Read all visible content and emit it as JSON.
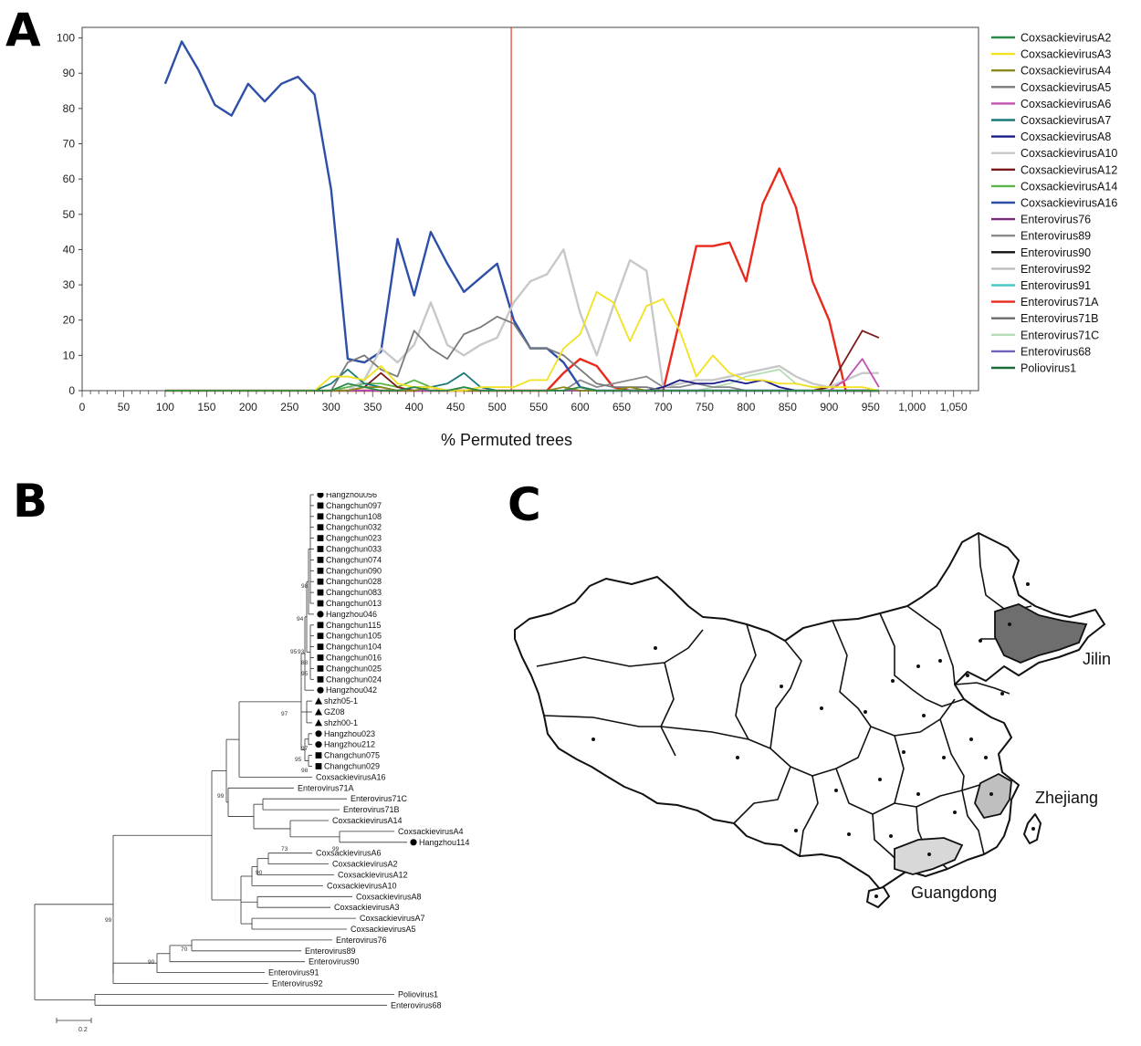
{
  "panels": {
    "a": "A",
    "b": "B",
    "c": "C"
  },
  "chart_data": {
    "type": "line",
    "xlabel": "% Permuted trees",
    "ylabel": "",
    "xlim": [
      0,
      1080
    ],
    "ylim": [
      0,
      103
    ],
    "x_ticks": [
      0,
      50,
      100,
      150,
      200,
      250,
      300,
      350,
      400,
      450,
      500,
      550,
      600,
      650,
      700,
      750,
      800,
      850,
      900,
      950,
      "1,000",
      "1,050"
    ],
    "y_ticks": [
      0,
      10,
      20,
      30,
      40,
      50,
      60,
      70,
      80,
      90,
      100
    ],
    "vertical_marker_x": 517,
    "vertical_marker_color": "#e03c2c",
    "x": [
      100,
      120,
      140,
      160,
      180,
      200,
      220,
      240,
      260,
      280,
      300,
      320,
      340,
      360,
      380,
      400,
      420,
      440,
      460,
      480,
      500,
      520,
      540,
      560,
      580,
      600,
      620,
      640,
      660,
      680,
      700,
      720,
      740,
      760,
      780,
      800,
      820,
      840,
      860,
      880,
      900,
      920,
      940,
      960
    ],
    "legend_position": "right",
    "series": [
      {
        "name": "CoxsackievirusA2",
        "color": "#2a8a4a",
        "values": [
          0,
          0,
          0,
          0,
          0,
          0,
          0,
          0,
          0,
          0,
          0,
          2,
          1,
          0,
          0,
          1,
          0,
          0,
          1,
          0,
          0,
          0,
          0,
          0,
          0,
          1,
          0,
          0,
          0,
          0,
          0,
          0,
          0,
          0,
          0,
          0,
          0,
          0,
          0,
          0,
          0,
          0,
          0,
          0
        ]
      },
      {
        "name": "CoxsackievirusA3",
        "color": "#f2e21e",
        "values": [
          0,
          0,
          0,
          0,
          0,
          0,
          0,
          0,
          0,
          0,
          4,
          4,
          3,
          7,
          2,
          1,
          1,
          0,
          0,
          1,
          1,
          1,
          3,
          3,
          12,
          16,
          28,
          25,
          14,
          24,
          26,
          17,
          4,
          10,
          5,
          3,
          3,
          2,
          2,
          1,
          1,
          1,
          1,
          0
        ]
      },
      {
        "name": "CoxsackievirusA4",
        "color": "#8a8a1a",
        "values": [
          0,
          0,
          0,
          0,
          0,
          0,
          0,
          0,
          0,
          0,
          0,
          0,
          1,
          1,
          0,
          0,
          1,
          0,
          0,
          0,
          0,
          0,
          0,
          0,
          1,
          0,
          0,
          0,
          1,
          0,
          0,
          0,
          0,
          0,
          0,
          0,
          0,
          0,
          0,
          0,
          0,
          0,
          0,
          0
        ]
      },
      {
        "name": "CoxsackievirusA5",
        "color": "#7a7a7a",
        "values": [
          0,
          0,
          0,
          0,
          0,
          0,
          0,
          0,
          0,
          0,
          0,
          8,
          10,
          6,
          4,
          17,
          12,
          9,
          16,
          18,
          21,
          19,
          12,
          12,
          10,
          6,
          2,
          1,
          1,
          1,
          0,
          0,
          0,
          0,
          0,
          0,
          0,
          0,
          0,
          0,
          0,
          0,
          0,
          0
        ]
      },
      {
        "name": "CoxsackievirusA6",
        "color": "#c050b0",
        "values": [
          0,
          0,
          0,
          0,
          0,
          0,
          0,
          0,
          0,
          0,
          0,
          0,
          0,
          0,
          0,
          0,
          0,
          0,
          0,
          0,
          0,
          0,
          0,
          0,
          0,
          0,
          0,
          0,
          0,
          0,
          0,
          0,
          0,
          0,
          0,
          0,
          0,
          0,
          0,
          0,
          0,
          3,
          9,
          1
        ]
      },
      {
        "name": "CoxsackievirusA7",
        "color": "#1a7a7a",
        "values": [
          0,
          0,
          0,
          0,
          0,
          0,
          0,
          0,
          0,
          0,
          2,
          6,
          2,
          1,
          0,
          1,
          1,
          2,
          5,
          1,
          0,
          0,
          0,
          0,
          0,
          0,
          0,
          0,
          0,
          0,
          0,
          0,
          0,
          0,
          0,
          0,
          0,
          0,
          0,
          0,
          0,
          0,
          0,
          0
        ]
      },
      {
        "name": "CoxsackievirusA8",
        "color": "#1a1a88",
        "values": [
          0,
          0,
          0,
          0,
          0,
          0,
          0,
          0,
          0,
          0,
          0,
          0,
          0,
          0,
          0,
          0,
          0,
          0,
          0,
          0,
          0,
          0,
          0,
          0,
          0,
          0,
          0,
          0,
          0,
          0,
          1,
          3,
          2,
          2,
          3,
          2,
          3,
          1,
          0,
          0,
          0,
          0,
          0,
          0
        ]
      },
      {
        "name": "CoxsackievirusA10",
        "color": "#c8c8c8",
        "values": [
          0,
          0,
          0,
          0,
          0,
          0,
          0,
          0,
          0,
          0,
          0,
          0,
          3,
          12,
          8,
          13,
          25,
          13,
          10,
          13,
          15,
          25,
          31,
          33,
          40,
          22,
          10,
          24,
          37,
          34,
          1,
          2,
          3,
          3,
          4,
          5,
          6,
          7,
          4,
          2,
          1,
          3,
          5,
          5
        ]
      },
      {
        "name": "CoxsackievirusA12",
        "color": "#7a1a1a",
        "values": [
          0,
          0,
          0,
          0,
          0,
          0,
          0,
          0,
          0,
          0,
          0,
          0,
          1,
          5,
          1,
          0,
          0,
          0,
          0,
          0,
          0,
          0,
          0,
          0,
          0,
          0,
          0,
          0,
          0,
          0,
          0,
          0,
          0,
          0,
          0,
          0,
          0,
          0,
          0,
          0,
          1,
          9,
          17,
          15
        ]
      },
      {
        "name": "CoxsackievirusA14",
        "color": "#5ab548",
        "values": [
          0,
          0,
          0,
          0,
          0,
          0,
          0,
          0,
          0,
          0,
          0,
          1,
          2,
          2,
          1,
          3,
          1,
          0,
          1,
          0,
          0,
          0,
          0,
          0,
          0,
          0,
          0,
          0,
          0,
          0,
          0,
          0,
          0,
          0,
          0,
          0,
          0,
          0,
          0,
          0,
          0,
          0,
          0,
          0
        ]
      },
      {
        "name": "CoxsackievirusA16",
        "color": "#2e4fa8",
        "values": [
          87,
          99,
          91,
          81,
          78,
          87,
          82,
          87,
          89,
          84,
          57,
          9,
          8,
          11,
          43,
          27,
          45,
          36,
          28,
          32,
          36,
          20,
          12,
          12,
          8,
          1,
          0,
          0,
          0,
          0,
          0,
          0,
          0,
          0,
          0,
          0,
          0,
          0,
          0,
          0,
          0,
          0,
          0,
          0
        ]
      },
      {
        "name": "Enterovirus76",
        "color": "#7a2a7a",
        "values": [
          0,
          0,
          0,
          0,
          0,
          0,
          0,
          0,
          0,
          0,
          0,
          0,
          0,
          0,
          0,
          0,
          0,
          0,
          0,
          0,
          0,
          0,
          0,
          0,
          0,
          0,
          0,
          0,
          0,
          0,
          0,
          0,
          0,
          0,
          0,
          0,
          0,
          0,
          0,
          0,
          0,
          0,
          0,
          0
        ]
      },
      {
        "name": "Enterovirus89",
        "color": "#8a8a8a",
        "values": [
          0,
          0,
          0,
          0,
          0,
          0,
          0,
          0,
          0,
          0,
          0,
          0,
          0,
          0,
          0,
          0,
          0,
          0,
          0,
          0,
          0,
          0,
          0,
          0,
          0,
          3,
          1,
          2,
          3,
          4,
          1,
          1,
          2,
          1,
          1,
          0,
          0,
          0,
          0,
          0,
          0,
          0,
          0,
          0
        ]
      },
      {
        "name": "Enterovirus90",
        "color": "#111111",
        "values": [
          0,
          0,
          0,
          0,
          0,
          0,
          0,
          0,
          0,
          0,
          0,
          0,
          0,
          0,
          0,
          0,
          0,
          0,
          0,
          0,
          0,
          0,
          0,
          0,
          0,
          0,
          0,
          0,
          0,
          0,
          0,
          0,
          0,
          0,
          0,
          0,
          0,
          0,
          0,
          0,
          0,
          0,
          0,
          0
        ]
      },
      {
        "name": "Enterovirus92",
        "color": "#bdbdbd",
        "values": [
          0,
          0,
          0,
          0,
          0,
          0,
          0,
          0,
          0,
          0,
          0,
          0,
          0,
          0,
          0,
          0,
          0,
          0,
          0,
          0,
          0,
          0,
          0,
          0,
          0,
          0,
          0,
          0,
          0,
          0,
          0,
          0,
          0,
          0,
          0,
          0,
          0,
          0,
          0,
          0,
          0,
          0,
          0,
          0
        ]
      },
      {
        "name": "Enterovirus91",
        "color": "#4ac8c8",
        "values": [
          0,
          0,
          0,
          0,
          0,
          0,
          0,
          0,
          0,
          0,
          0,
          0,
          0,
          0,
          0,
          0,
          0,
          0,
          0,
          0,
          0,
          0,
          0,
          0,
          0,
          0,
          0,
          0,
          0,
          0,
          0,
          0,
          0,
          0,
          0,
          0,
          0,
          0,
          0,
          0,
          0,
          0,
          0,
          0
        ]
      },
      {
        "name": "Enterovirus71A",
        "color": "#e8291c",
        "values": [
          0,
          0,
          0,
          0,
          0,
          0,
          0,
          0,
          0,
          0,
          0,
          0,
          0,
          0,
          0,
          0,
          0,
          0,
          0,
          0,
          0,
          0,
          0,
          0,
          5,
          9,
          7,
          1,
          0,
          0,
          0,
          20,
          41,
          41,
          42,
          31,
          53,
          63,
          52,
          31,
          20,
          0,
          0,
          0
        ]
      },
      {
        "name": "Enterovirus71B",
        "color": "#6a6a6a",
        "values": [
          0,
          0,
          0,
          0,
          0,
          0,
          0,
          0,
          0,
          0,
          0,
          0,
          0,
          0,
          0,
          0,
          0,
          0,
          0,
          0,
          0,
          0,
          0,
          0,
          0,
          0,
          0,
          0,
          0,
          0,
          0,
          0,
          0,
          0,
          0,
          0,
          0,
          0,
          0,
          0,
          0,
          0,
          0,
          0
        ]
      },
      {
        "name": "Enterovirus71C",
        "color": "#b5dcb5",
        "values": [
          0,
          0,
          0,
          0,
          0,
          0,
          0,
          0,
          0,
          0,
          0,
          0,
          0,
          0,
          0,
          0,
          0,
          0,
          0,
          0,
          0,
          0,
          0,
          0,
          0,
          0,
          0,
          0,
          0,
          0,
          0,
          0,
          0,
          1,
          2,
          4,
          5,
          6,
          2,
          1,
          0,
          0,
          0,
          0
        ]
      },
      {
        "name": "Enterovirus68",
        "color": "#7060c0",
        "values": [
          0,
          0,
          0,
          0,
          0,
          0,
          0,
          0,
          0,
          0,
          0,
          0,
          0,
          0,
          0,
          0,
          0,
          0,
          0,
          0,
          0,
          0,
          0,
          0,
          0,
          0,
          0,
          0,
          0,
          0,
          0,
          0,
          0,
          0,
          0,
          0,
          0,
          0,
          0,
          0,
          0,
          0,
          0,
          0
        ]
      },
      {
        "name": "Poliovirus1",
        "color": "#1a6a3a",
        "values": [
          0,
          0,
          0,
          0,
          0,
          0,
          0,
          0,
          0,
          0,
          0,
          0,
          0,
          0,
          0,
          0,
          0,
          0,
          0,
          0,
          0,
          0,
          0,
          0,
          0,
          0,
          0,
          0,
          0,
          0,
          0,
          0,
          0,
          0,
          0,
          0,
          0,
          0,
          0,
          0,
          0,
          0,
          0,
          0
        ]
      }
    ]
  },
  "tree": {
    "scale_label": "0.2",
    "leaves": [
      {
        "label": "Hangzhou056",
        "marker": "circle"
      },
      {
        "label": "Changchun097",
        "marker": "square"
      },
      {
        "label": "Changchun108",
        "marker": "square"
      },
      {
        "label": "Changchun032",
        "marker": "square"
      },
      {
        "label": "Changchun023",
        "marker": "square"
      },
      {
        "label": "Changchun033",
        "marker": "square"
      },
      {
        "label": "Changchun074",
        "marker": "square"
      },
      {
        "label": "Changchun090",
        "marker": "square"
      },
      {
        "label": "Changchun028",
        "marker": "square"
      },
      {
        "label": "Changchun083",
        "marker": "square"
      },
      {
        "label": "Changchun013",
        "marker": "square"
      },
      {
        "label": "Hangzhou046",
        "marker": "circle"
      },
      {
        "label": "Changchun115",
        "marker": "square"
      },
      {
        "label": "Changchun105",
        "marker": "square"
      },
      {
        "label": "Changchun104",
        "marker": "square"
      },
      {
        "label": "Changchun016",
        "marker": "square"
      },
      {
        "label": "Changchun025",
        "marker": "square"
      },
      {
        "label": "Changchun024",
        "marker": "square"
      },
      {
        "label": "Hangzhou042",
        "marker": "circle"
      },
      {
        "label": "shzh05-1",
        "marker": "triangle"
      },
      {
        "label": "GZ08",
        "marker": "triangle"
      },
      {
        "label": "shzh00-1",
        "marker": "triangle"
      },
      {
        "label": "Hangzhou023",
        "marker": "circle"
      },
      {
        "label": "Hangzhou212",
        "marker": "circle"
      },
      {
        "label": "Changchun075",
        "marker": "square"
      },
      {
        "label": "Changchun029",
        "marker": "square"
      },
      {
        "label": "CoxsackievirusA16",
        "marker": "none"
      },
      {
        "label": "Enterovirus71A",
        "marker": "none"
      },
      {
        "label": "Enterovirus71C",
        "marker": "none"
      },
      {
        "label": "Enterovirus71B",
        "marker": "none"
      },
      {
        "label": "CoxsackievirusA14",
        "marker": "none"
      },
      {
        "label": "CoxsackievirusA4",
        "marker": "none"
      },
      {
        "label": "Hangzhou114",
        "marker": "circle"
      },
      {
        "label": "CoxsackievirusA6",
        "marker": "none"
      },
      {
        "label": "CoxsackievirusA2",
        "marker": "none"
      },
      {
        "label": "CoxsackievirusA12",
        "marker": "none"
      },
      {
        "label": "CoxsackievirusA10",
        "marker": "none"
      },
      {
        "label": "CoxsackievirusA8",
        "marker": "none"
      },
      {
        "label": "CoxsackievirusA3",
        "marker": "none"
      },
      {
        "label": "CoxsackievirusA7",
        "marker": "none"
      },
      {
        "label": "CoxsackievirusA5",
        "marker": "none"
      },
      {
        "label": "Enterovirus76",
        "marker": "none"
      },
      {
        "label": "Enterovirus89",
        "marker": "none"
      },
      {
        "label": "Enterovirus90",
        "marker": "none"
      },
      {
        "label": "Enterovirus91",
        "marker": "none"
      },
      {
        "label": "Enterovirus92",
        "marker": "none"
      },
      {
        "label": "Poliovirus1",
        "marker": "none"
      },
      {
        "label": "Enterovirus68",
        "marker": "none"
      }
    ],
    "bootstrap": [
      "98",
      "94",
      "95",
      "93",
      "88",
      "95",
      "97",
      "97",
      "95",
      "98",
      "99",
      "73",
      "99",
      "90",
      "70",
      "90",
      "99"
    ]
  },
  "map": {
    "highlighted": [
      {
        "name": "Jilin",
        "shade": "#6e6e6e"
      },
      {
        "name": "Zhejiang",
        "shade": "#bfbfbf"
      },
      {
        "name": "Guangdong",
        "shade": "#d8d8d8"
      }
    ]
  }
}
